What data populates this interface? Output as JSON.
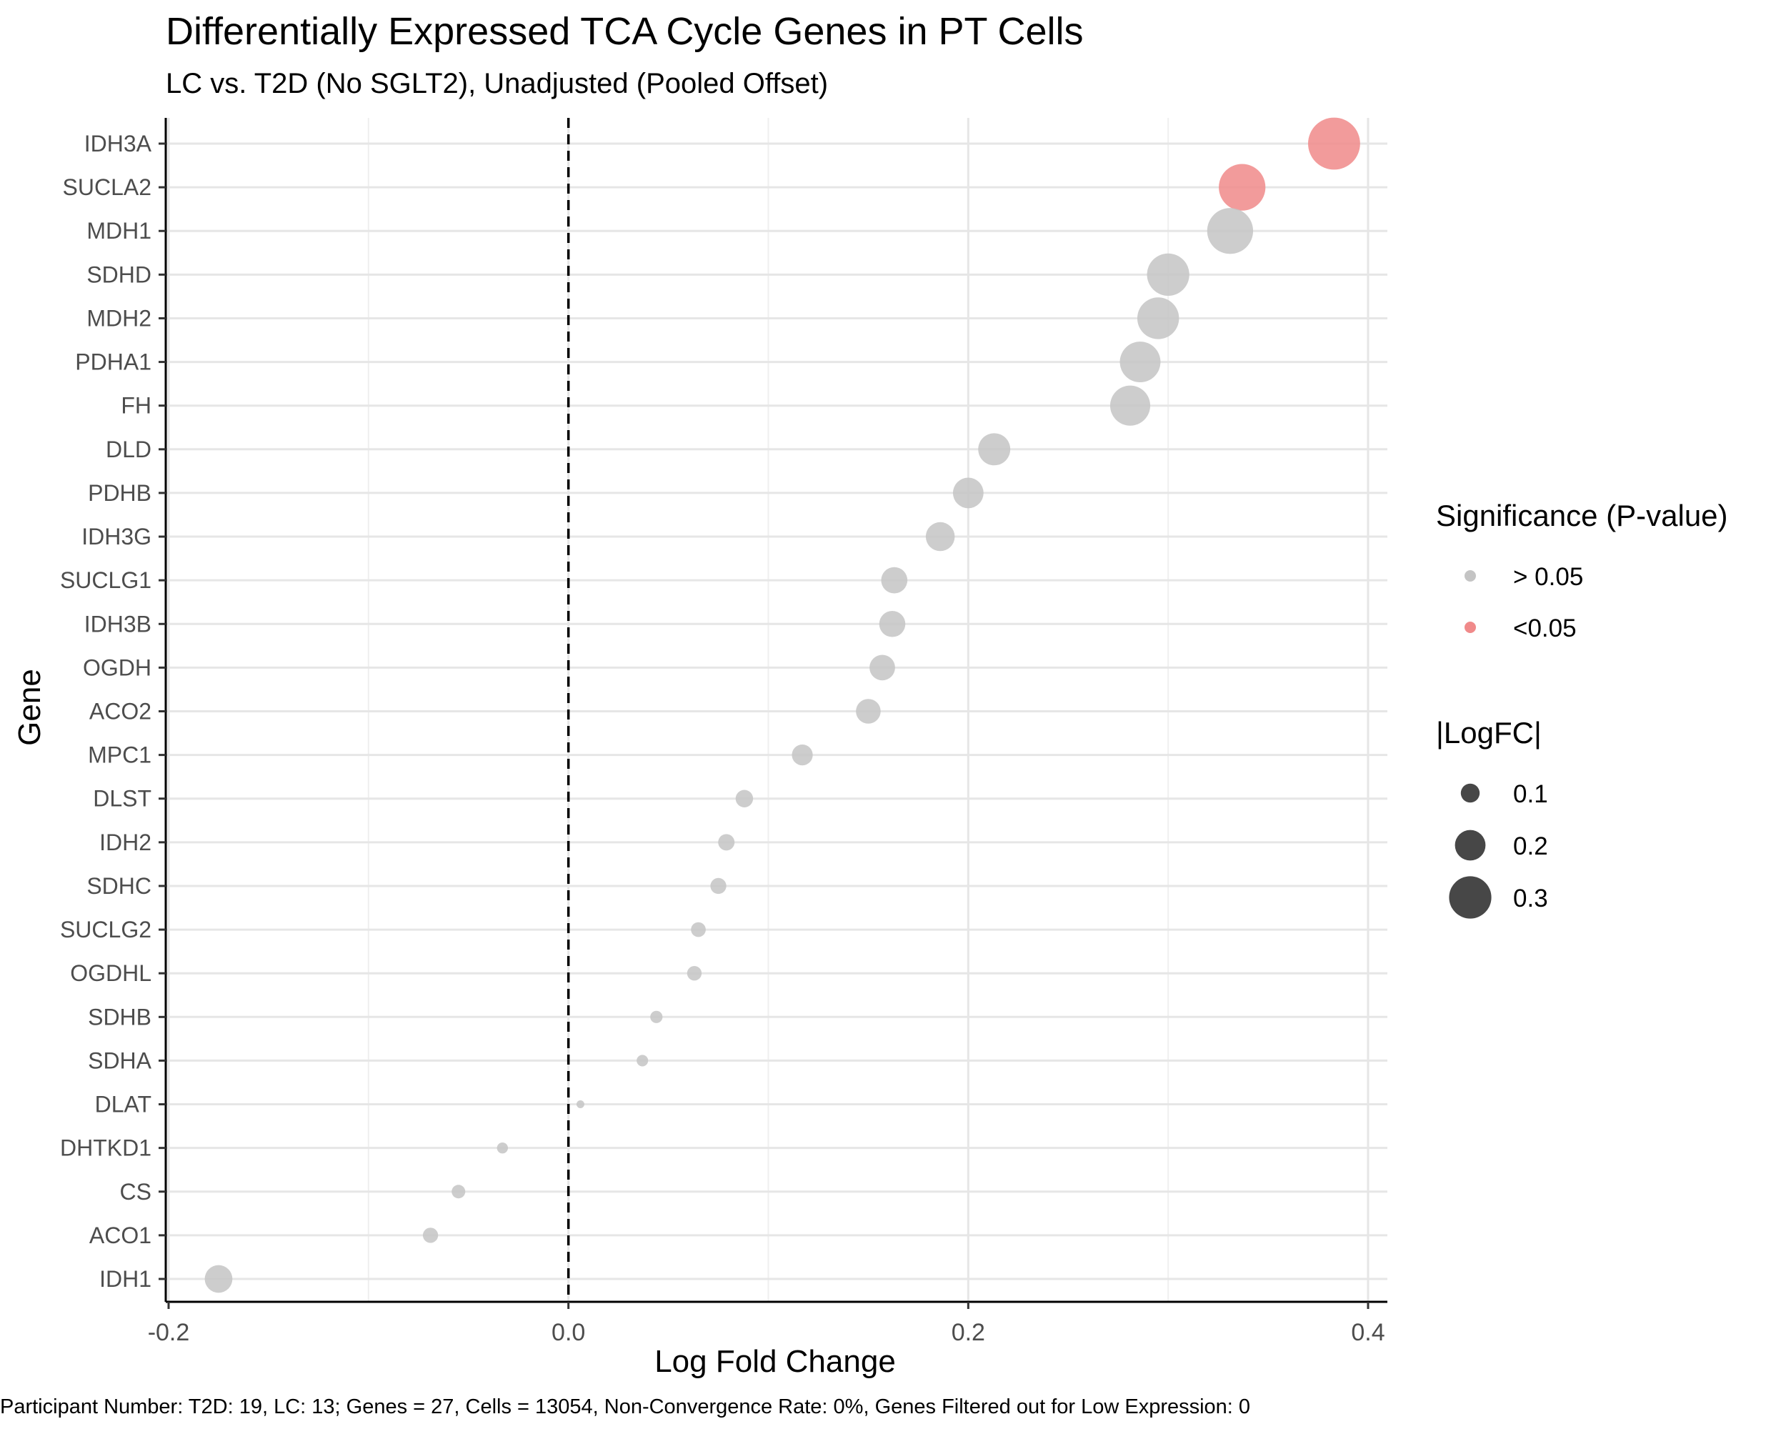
{
  "chart_data": {
    "type": "scatter",
    "title": "Differentially Expressed TCA Cycle Genes in PT Cells",
    "subtitle": "LC vs. T2D (No SGLT2), Unadjusted (Pooled Offset)",
    "xlabel": "Log Fold Change",
    "ylabel": "Gene",
    "xlim": [
      -0.2,
      0.41
    ],
    "xticks": [
      -0.2,
      0.0,
      0.2,
      0.4
    ],
    "xtick_labels": [
      "-0.2",
      "0.0",
      "0.2",
      "0.4"
    ],
    "reference_line": {
      "x": 0,
      "style": "dashed"
    },
    "grid": true,
    "legend_position": "right",
    "categories": [
      "IDH3A",
      "SUCLA2",
      "MDH1",
      "SDHD",
      "MDH2",
      "PDHA1",
      "FH",
      "DLD",
      "PDHB",
      "IDH3G",
      "SUCLG1",
      "IDH3B",
      "OGDH",
      "ACO2",
      "MPC1",
      "DLST",
      "IDH2",
      "SDHC",
      "SUCLG2",
      "OGDHL",
      "SDHB",
      "SDHA",
      "DLAT",
      "DHTKD1",
      "CS",
      "ACO1",
      "IDH1"
    ],
    "values": [
      0.383,
      0.337,
      0.331,
      0.3,
      0.295,
      0.286,
      0.281,
      0.213,
      0.2,
      0.186,
      0.163,
      0.162,
      0.157,
      0.15,
      0.117,
      0.088,
      0.079,
      0.075,
      0.065,
      0.063,
      0.044,
      0.037,
      0.006,
      -0.033,
      -0.055,
      -0.069,
      -0.175
    ],
    "significant": [
      "<0.05",
      "<0.05",
      "> 0.05",
      "> 0.05",
      "> 0.05",
      "> 0.05",
      "> 0.05",
      "> 0.05",
      "> 0.05",
      "> 0.05",
      "> 0.05",
      "> 0.05",
      "> 0.05",
      "> 0.05",
      "> 0.05",
      "> 0.05",
      "> 0.05",
      "> 0.05",
      "> 0.05",
      "> 0.05",
      "> 0.05",
      "> 0.05",
      "> 0.05",
      "> 0.05",
      "> 0.05",
      "> 0.05",
      "> 0.05"
    ],
    "legend_color": {
      "title": "Significance (P-value)",
      "items": [
        {
          "label": "> 0.05",
          "color": "#c4c4c4"
        },
        {
          "label": "<0.05",
          "color": "#f08a8a"
        }
      ]
    },
    "legend_size": {
      "title": "|LogFC|",
      "items": [
        {
          "label": "0.1",
          "value": 0.1
        },
        {
          "label": "0.2",
          "value": 0.2
        },
        {
          "label": "0.3",
          "value": 0.3
        }
      ]
    },
    "caption": "Participant Number: T2D: 19, LC: 13; Genes = 27, Cells = 13054, Non-Convergence Rate: 0%, Genes Filtered out for Low Expression: 0"
  }
}
